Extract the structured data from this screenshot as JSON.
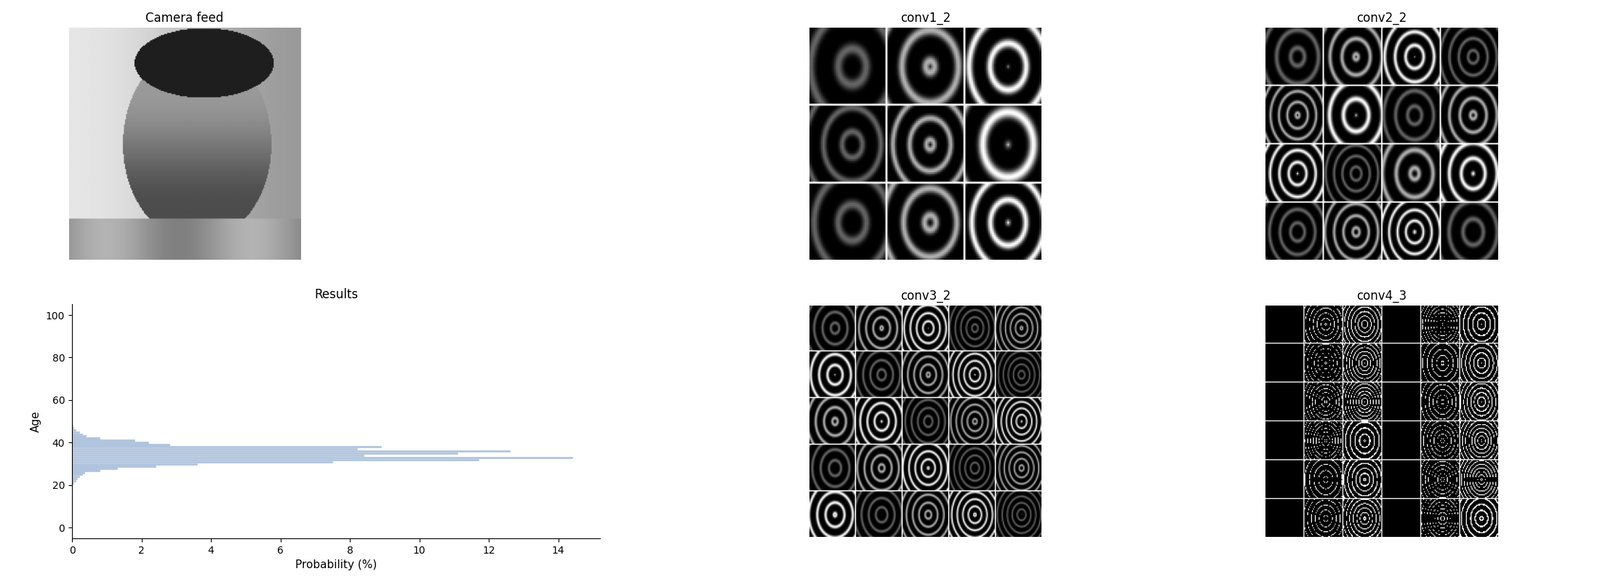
{
  "images": [
    {
      "title": "Camera feed"
    },
    {
      "title": "conv1_2"
    },
    {
      "title": "conv2_2"
    },
    {
      "title": "conv3_2"
    },
    {
      "title": "conv4_3"
    }
  ],
  "chart_data": {
    "type": "bar",
    "orientation": "horizontal",
    "title": "Results",
    "xlabel": "Probability (%)",
    "ylabel": "Age",
    "x": [
      21,
      22,
      23,
      24,
      25,
      26,
      27,
      28,
      29,
      30,
      31,
      32,
      33,
      34,
      35,
      36,
      37,
      38,
      39,
      40,
      41,
      42,
      43,
      44,
      45,
      46,
      47,
      48
    ],
    "values": [
      0.05,
      0.1,
      0.15,
      0.2,
      0.3,
      0.35,
      0.8,
      1.3,
      2.4,
      3.6,
      7.5,
      11.7,
      14.4,
      8.4,
      11.1,
      12.6,
      8.2,
      8.9,
      2.8,
      2.2,
      1.8,
      0.8,
      0.4,
      0.3,
      0.2,
      0.1,
      0.05,
      0.03
    ],
    "color": "#b0c4de",
    "xlim": [
      0,
      15.2
    ],
    "xticks": [
      0,
      2,
      4,
      6,
      8,
      10,
      12,
      14
    ],
    "ylim": [
      -5,
      105
    ],
    "yticks": [
      0,
      20,
      40,
      60,
      80,
      100
    ],
    "grid": false
  }
}
